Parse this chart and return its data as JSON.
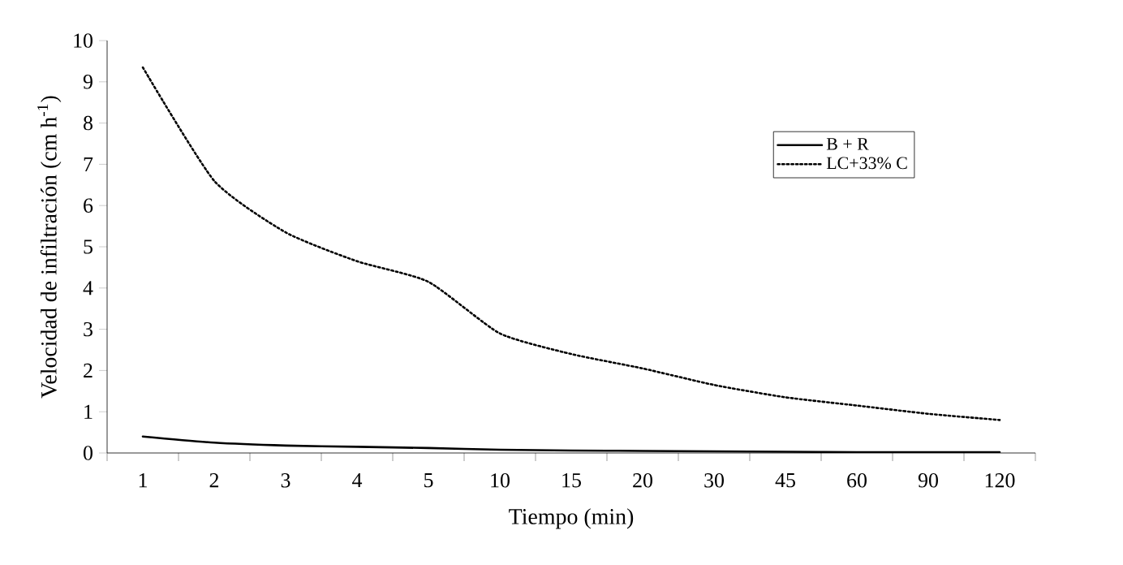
{
  "chart_data": {
    "type": "line",
    "xlabel": "Tiempo (min)",
    "ylabel": "Velocidad de infiltración (cm h$^{-1}$)",
    "categories": [
      "1",
      "2",
      "3",
      "4",
      "5",
      "10",
      "15",
      "20",
      "30",
      "45",
      "60",
      "90",
      "120"
    ],
    "ylim": [
      0,
      10
    ],
    "yticks": [
      0,
      1,
      2,
      3,
      4,
      5,
      6,
      7,
      8,
      9,
      10
    ],
    "legend": "top right",
    "grid": false,
    "series": [
      {
        "name": "B + R",
        "color": "#000000",
        "line_style": "solid",
        "values": [
          0.4,
          0.25,
          0.18,
          0.15,
          0.12,
          0.08,
          0.06,
          0.05,
          0.04,
          0.03,
          0.02,
          0.02,
          0.02
        ]
      },
      {
        "name": "LC+33% C",
        "color": "#000000",
        "line_style": "dotted",
        "values": [
          9.35,
          6.6,
          5.35,
          4.65,
          4.15,
          2.9,
          2.4,
          2.05,
          1.65,
          1.35,
          1.15,
          0.95,
          0.8
        ]
      }
    ]
  }
}
